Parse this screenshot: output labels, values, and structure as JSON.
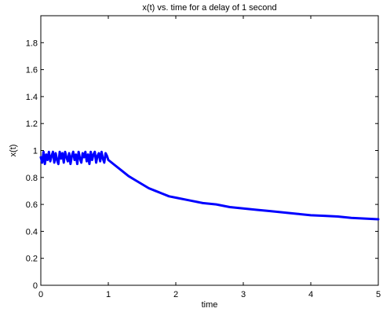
{
  "chart_data": {
    "type": "line",
    "title": "x(t) vs. time for a delay of 1 second",
    "xlabel": "time",
    "ylabel": "x(t)",
    "xlim": [
      0,
      5
    ],
    "ylim": [
      0,
      2
    ],
    "xticks": [
      0,
      1,
      2,
      3,
      4,
      5
    ],
    "yticks": [
      0,
      0.2,
      0.4,
      0.6,
      0.8,
      1,
      1.2,
      1.4,
      1.6,
      1.8
    ],
    "xtick_labels": [
      "0",
      "1",
      "2",
      "3",
      "4",
      "5"
    ],
    "ytick_labels": [
      "0",
      "0.2",
      "0.4",
      "0.6",
      "0.8",
      "1",
      "1.2",
      "1.4",
      "1.6",
      "1.8"
    ],
    "grid": false,
    "line_color": "#0000ff",
    "series": [
      {
        "x": [
          0,
          0.02,
          0.04,
          0.06,
          0.08,
          0.1,
          0.12,
          0.14,
          0.16,
          0.18,
          0.2,
          0.22,
          0.24,
          0.26,
          0.28,
          0.3,
          0.32,
          0.34,
          0.36,
          0.38,
          0.4,
          0.42,
          0.44,
          0.46,
          0.48,
          0.5,
          0.52,
          0.54,
          0.56,
          0.58,
          0.6,
          0.62,
          0.64,
          0.66,
          0.68,
          0.7,
          0.72,
          0.74,
          0.76,
          0.78,
          0.8,
          0.82,
          0.84,
          0.86,
          0.88,
          0.9,
          0.92,
          0.94,
          0.96,
          0.98,
          1.0,
          1.1,
          1.2,
          1.3,
          1.4,
          1.5,
          1.6,
          1.7,
          1.8,
          1.9,
          2.0,
          2.2,
          2.4,
          2.6,
          2.8,
          3.0,
          3.2,
          3.4,
          3.6,
          3.8,
          4.0,
          4.2,
          4.4,
          4.6,
          4.8,
          5.0
        ],
        "y": [
          0.95,
          0.91,
          0.99,
          0.9,
          0.97,
          0.93,
          0.99,
          0.92,
          0.96,
          0.99,
          0.91,
          0.98,
          0.93,
          0.9,
          0.99,
          0.94,
          0.98,
          0.91,
          0.99,
          0.95,
          0.92,
          0.98,
          0.9,
          0.96,
          0.99,
          0.93,
          0.97,
          0.9,
          0.99,
          0.94,
          0.91,
          0.98,
          0.95,
          0.99,
          0.92,
          0.97,
          0.9,
          0.99,
          0.93,
          0.97,
          0.99,
          0.91,
          0.96,
          0.98,
          0.92,
          0.99,
          0.94,
          0.91,
          0.98,
          0.96,
          0.93,
          0.89,
          0.85,
          0.81,
          0.78,
          0.75,
          0.72,
          0.7,
          0.68,
          0.66,
          0.65,
          0.63,
          0.61,
          0.6,
          0.58,
          0.57,
          0.56,
          0.55,
          0.54,
          0.53,
          0.52,
          0.515,
          0.51,
          0.5,
          0.495,
          0.49
        ]
      }
    ]
  }
}
